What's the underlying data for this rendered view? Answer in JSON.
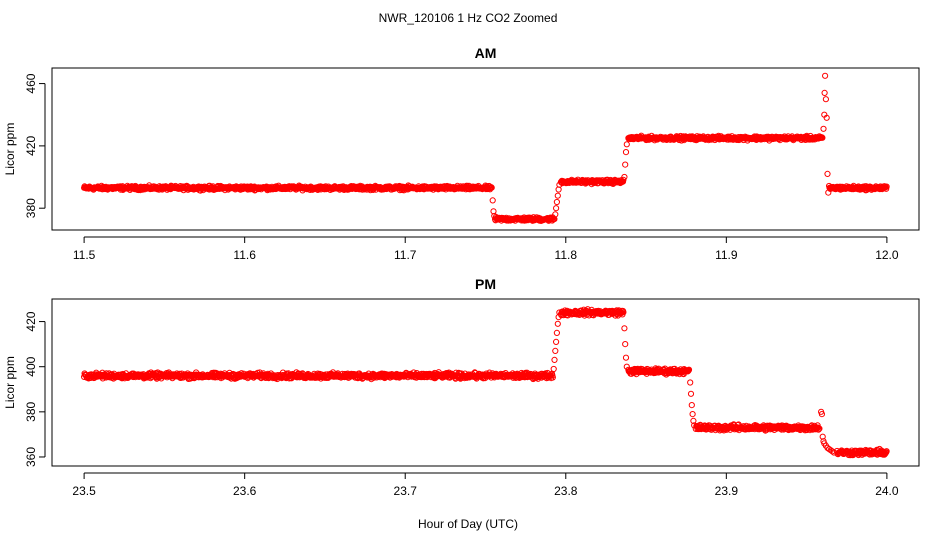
{
  "figure": {
    "title": "NWR_120106  1 Hz CO2 Zoomed",
    "xlabel": "Hour of Day (UTC)",
    "point_color": "#ff0000"
  },
  "chart_data": [
    {
      "type": "scatter",
      "title": "AM",
      "xlabel": "",
      "ylabel": "Licor ppm",
      "xlim": [
        11.48,
        12.02
      ],
      "ylim": [
        366,
        470
      ],
      "x_ticks": [
        11.5,
        11.6,
        11.7,
        11.8,
        11.9,
        12.0
      ],
      "x_tick_labels": [
        "11.5",
        "11.6",
        "11.7",
        "11.8",
        "11.9",
        "12.0"
      ],
      "y_ticks": [
        380,
        420,
        460
      ],
      "y_tick_labels": [
        "380",
        "420",
        "460"
      ],
      "grid": false,
      "legend": "none",
      "points_per_hour": 3600,
      "segments": [
        {
          "x_start": 11.5,
          "x_end": 11.754,
          "y": 393
        },
        {
          "x_start": 11.756,
          "x_end": 11.793,
          "y": 373
        },
        {
          "x_start": 11.797,
          "x_end": 11.836,
          "y": 397
        },
        {
          "x_start": 11.839,
          "x_end": 11.96,
          "y": 425
        },
        {
          "x_start": 11.964,
          "x_end": 12.0,
          "y": 393
        }
      ],
      "transitions": [
        {
          "x": [
            11.7545,
            11.755,
            11.7555
          ],
          "y": [
            385,
            378,
            375
          ]
        },
        {
          "x": [
            11.7935,
            11.794,
            11.7945,
            11.795,
            11.7955,
            11.796
          ],
          "y": [
            376,
            380,
            384,
            388,
            392,
            395
          ]
        },
        {
          "x": [
            11.8365,
            11.837,
            11.8375,
            11.838
          ],
          "y": [
            400,
            408,
            416,
            421
          ]
        },
        {
          "x": [
            11.9605,
            11.961,
            11.9612,
            11.9615,
            11.962,
            11.9625,
            11.963,
            11.9635
          ],
          "y": [
            431,
            440,
            454,
            465,
            450,
            438,
            402,
            390
          ]
        }
      ]
    },
    {
      "type": "scatter",
      "title": "PM",
      "xlabel": "Hour of Day (UTC)",
      "ylabel": "Licor ppm",
      "xlim": [
        23.48,
        24.02
      ],
      "ylim": [
        356,
        430
      ],
      "x_ticks": [
        23.5,
        23.6,
        23.7,
        23.8,
        23.9,
        24.0
      ],
      "x_tick_labels": [
        "23.5",
        "23.6",
        "23.7",
        "23.8",
        "23.9",
        "24.0"
      ],
      "y_ticks": [
        360,
        380,
        400,
        420
      ],
      "y_tick_labels": [
        "360",
        "380",
        "400",
        "420"
      ],
      "grid": false,
      "legend": "none",
      "points_per_hour": 3600,
      "segments": [
        {
          "x_start": 23.5,
          "x_end": 23.792,
          "y": 396
        },
        {
          "x_start": 23.797,
          "x_end": 23.836,
          "y": 424
        },
        {
          "x_start": 23.839,
          "x_end": 23.877,
          "y": 398
        },
        {
          "x_start": 23.881,
          "x_end": 23.958,
          "y": 373
        },
        {
          "x_start": 23.969,
          "x_end": 24.0,
          "y": 362
        }
      ],
      "transitions": [
        {
          "x": [
            23.7925,
            23.793,
            23.7935,
            23.794,
            23.7945,
            23.795,
            23.7955,
            23.796
          ],
          "y": [
            399,
            403,
            407,
            411,
            415,
            419,
            422,
            424
          ]
        },
        {
          "x": [
            23.8365,
            23.837,
            23.8375,
            23.838
          ],
          "y": [
            417,
            410,
            404,
            400
          ]
        },
        {
          "x": [
            23.8775,
            23.878,
            23.8785,
            23.879,
            23.8795,
            23.88
          ],
          "y": [
            393,
            388,
            383,
            379,
            376,
            374
          ]
        },
        {
          "x": [
            23.959,
            23.9595,
            23.96,
            23.9605,
            23.961,
            23.962,
            23.963,
            23.964,
            23.965,
            23.966,
            23.967
          ],
          "y": [
            380,
            379,
            369,
            367,
            366,
            365,
            364,
            363.5,
            363,
            362.5,
            362
          ]
        }
      ]
    }
  ]
}
